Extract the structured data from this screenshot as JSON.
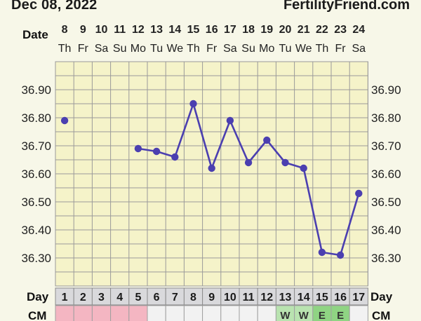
{
  "header": {
    "date": "Dec 08, 2022",
    "brand": "FertilityFriend.com"
  },
  "labels": {
    "date_row": "Date",
    "day_row": "Day",
    "cm_row": "CM"
  },
  "dates": [
    "8",
    "9",
    "10",
    "11",
    "12",
    "13",
    "14",
    "15",
    "16",
    "17",
    "18",
    "19",
    "20",
    "21",
    "22",
    "23",
    "24"
  ],
  "weekdays": [
    "Th",
    "Fr",
    "Sa",
    "Su",
    "Mo",
    "Tu",
    "We",
    "Th",
    "Fr",
    "Sa",
    "Su",
    "Mo",
    "Tu",
    "We",
    "Th",
    "Fr",
    "Sa"
  ],
  "days": [
    "1",
    "2",
    "3",
    "4",
    "5",
    "6",
    "7",
    "8",
    "9",
    "10",
    "11",
    "12",
    "13",
    "14",
    "15",
    "16",
    "17"
  ],
  "cm": [
    "",
    "",
    "",
    "",
    "",
    "",
    "",
    "",
    "",
    "",
    "",
    "",
    "W",
    "W",
    "E",
    "E",
    ""
  ],
  "colors": {
    "plot_bg": "#f5f3c9",
    "grid": "#9a9a9a",
    "line": "#4b3fb0",
    "period": "#f4b6c2",
    "cm_default": "#f2f2f2",
    "cm_w": "#b9e3b0",
    "cm_e": "#8fd483",
    "day_cell": "#d9d9dc"
  },
  "chart_data": {
    "type": "line",
    "x": [
      "1",
      "2",
      "3",
      "4",
      "5",
      "6",
      "7",
      "8",
      "9",
      "10",
      "11",
      "12",
      "13",
      "14",
      "15",
      "16",
      "17"
    ],
    "series": [
      {
        "values": [
          36.79,
          null,
          null,
          null,
          36.69,
          36.68,
          36.66,
          36.85,
          36.62,
          36.79,
          36.64,
          36.72,
          36.64,
          36.62,
          36.32,
          36.31,
          36.53
        ]
      }
    ],
    "yticks": [
      "36.90",
      "36.80",
      "36.70",
      "36.60",
      "36.50",
      "36.40",
      "36.30"
    ],
    "ylim": [
      36.2,
      37.0
    ],
    "period_days": [
      1,
      2,
      3,
      4,
      5
    ],
    "grid": true
  }
}
